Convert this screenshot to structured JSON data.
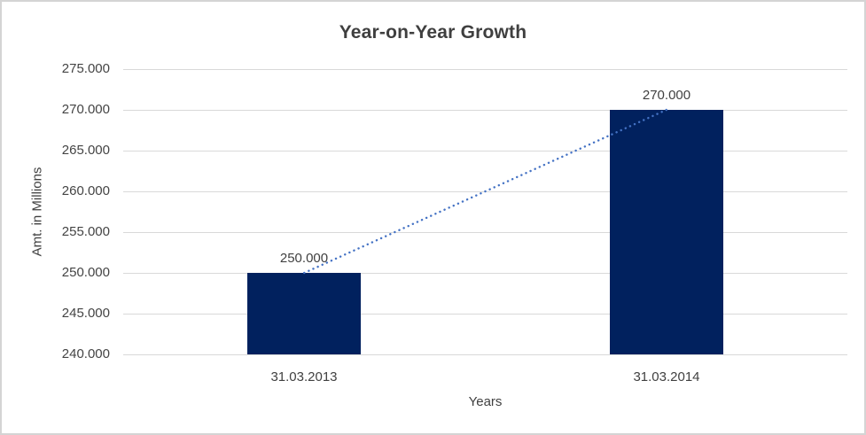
{
  "title": "Year-on-Year Growth",
  "chart_data": {
    "type": "bar",
    "title": "Year-on-Year Growth",
    "categories": [
      "31.03.2013",
      "31.03.2014"
    ],
    "values": [
      250000,
      270000
    ],
    "data_labels": [
      "250.000",
      "270.000"
    ],
    "xlabel": "Years",
    "ylabel": "Amt. in Millions",
    "ylim": [
      240000,
      275000
    ],
    "ytick_step": 5000,
    "ytick_labels": [
      "240.000",
      "245.000",
      "250.000",
      "255.000",
      "260.000",
      "265.000",
      "270.000",
      "275.000"
    ],
    "grid": true,
    "legend": false,
    "trendline": {
      "type": "linear",
      "style": "dotted",
      "values": [
        250000,
        270000
      ]
    },
    "colors": {
      "bar": "#01215e",
      "trendline": "#4472c4",
      "gridline": "#d9d9d9",
      "tick_text": "#444444",
      "title_text": "#3f3f3f",
      "frame_border": "#d4d4d4"
    }
  }
}
